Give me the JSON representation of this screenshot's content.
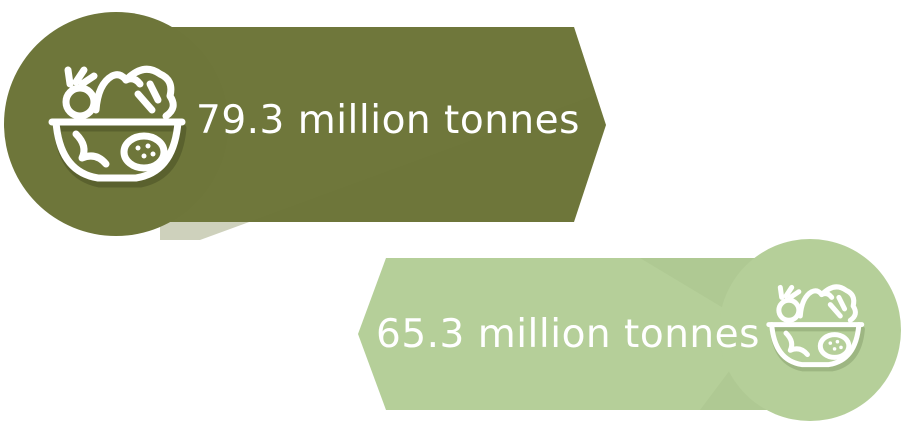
{
  "stats": [
    {
      "value_text": "79.3 million tonnes",
      "color": "#6e763a",
      "icon": "salad-bowl-icon"
    },
    {
      "value_text": "65.3 million tonnes",
      "color": "#b5cf99",
      "icon": "salad-bowl-icon"
    }
  ]
}
